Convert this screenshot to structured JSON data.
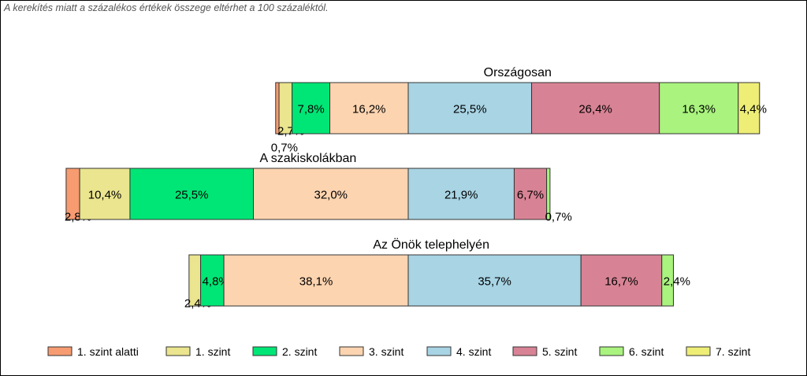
{
  "note": "A kerekítés miatt a  százalékos értékek összege eltérhet a 100 százaléktól.",
  "chart_data": {
    "type": "bar",
    "stacked": true,
    "orientation": "horizontal",
    "legend_position": "bottom",
    "categories": [
      "1. szint alatti",
      "1. szint",
      "2. szint",
      "3. szint",
      "4. szint",
      "5. szint",
      "6. szint",
      "7. szint"
    ],
    "colors": [
      "#f79b71",
      "#eae58e",
      "#00e676",
      "#fdd4b0",
      "#a8d4e4",
      "#d88395",
      "#a9f37e",
      "#eeee77"
    ],
    "groups": [
      {
        "title": "Országosan",
        "values": [
          0.7,
          2.7,
          7.8,
          16.2,
          25.5,
          26.4,
          16.3,
          4.4
        ],
        "labels": [
          "0,7%",
          "2,7%",
          "7,8%",
          "16,2%",
          "25,5%",
          "26,4%",
          "16,3%",
          "4,4%"
        ]
      },
      {
        "title": "A szakiskolákban",
        "values": [
          2.8,
          10.4,
          25.5,
          32.0,
          21.9,
          6.7,
          0.7,
          0
        ],
        "labels": [
          "2,8%",
          "10,4%",
          "25,5%",
          "32,0%",
          "21,9%",
          "6,7%",
          "0,7%",
          ""
        ]
      },
      {
        "title": "Az Önök telephelyén",
        "values": [
          0,
          2.4,
          4.8,
          38.1,
          35.7,
          16.7,
          2.4,
          0
        ],
        "labels": [
          "",
          "2,4%",
          "4,8%",
          "38,1%",
          "35,7%",
          "16,7%",
          "2,4%",
          ""
        ]
      }
    ]
  }
}
